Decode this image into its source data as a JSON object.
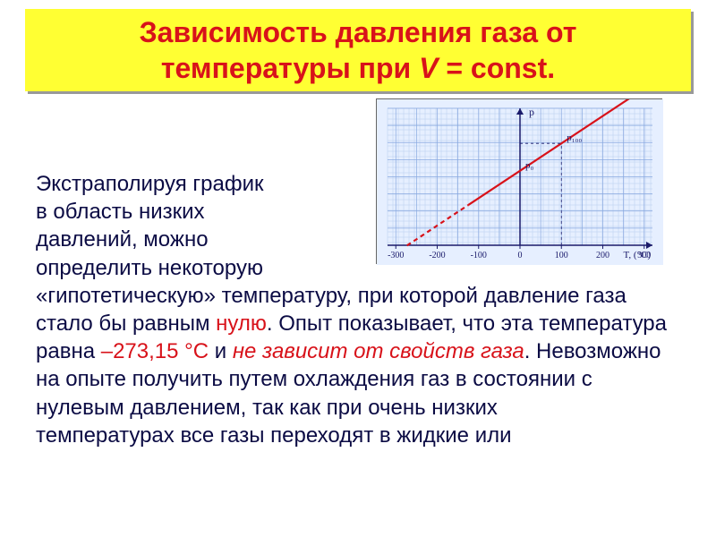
{
  "title": {
    "line1": "Зависимость давления газа от",
    "line2_prefix": "температуры при ",
    "line2_var": "V",
    "line2_suffix": " = const.",
    "bg": "#ffff33",
    "color": "#d8121a",
    "fontsize": 32,
    "shadow_color": "#999999"
  },
  "paragraph": {
    "pre_chart_1": "Экстраполируя график",
    "pre_chart_2": " в область низких",
    "pre_chart_3": "давлений, можно",
    "pre_chart_4": " определить некоторую",
    "rest_1": " «гипотетическую» температуру, при которой давление газа стало бы равным ",
    "word_zero": "нулю",
    "rest_2": ". Опыт показывает, что эта температура равна ",
    "word_temp": "–273,15 °С",
    "rest_3": " и ",
    "word_independent": "не зависит от свойств газа",
    "rest_4": ". Невозможно на опыте получить путем охлаждения газ в состоянии с нулевым давлением, так как при очень низких",
    "rest_5": "температурах все газы переходят в жидкие или",
    "color_body": "#0b0b44",
    "color_red": "#d8121a",
    "color_italic": "#d8121a"
  },
  "chart": {
    "type": "line",
    "background_color": "#e6efff",
    "grid_minor_color": "#b8ceee",
    "grid_major_color": "#88a8e0",
    "axis_color": "#1a1a6a",
    "line_color": "#d8121a",
    "line_width": 2.2,
    "tick_color": "#1a1a6a",
    "tick_fontsize": 10,
    "xlim": [
      -320,
      320
    ],
    "ylim": [
      0,
      160
    ],
    "xticks": [
      -300,
      -200,
      -100,
      0,
      100,
      200,
      300
    ],
    "x_axis_label": "T, (°C)",
    "y_axis_label": "p",
    "y_markers": [
      {
        "x": 0,
        "label": "p₀"
      },
      {
        "x": 100,
        "label": "p₁₀₀"
      }
    ],
    "line_solid_start_x": -125,
    "line_solid_end_x": 280,
    "line_dash_start_x": -273,
    "zero_pressure_x": -273,
    "slope": 0.32,
    "intercept_at_x0": 87
  }
}
